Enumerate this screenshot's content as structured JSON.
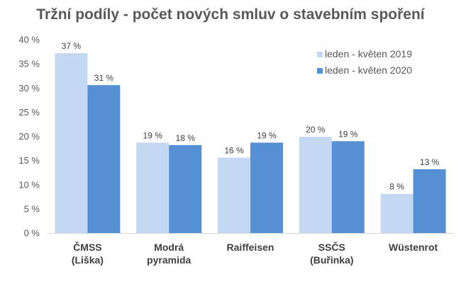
{
  "chart_data": {
    "type": "bar",
    "title": "Tržní podíly - počet nových smluv o stavebním spoření",
    "categories": [
      [
        "ČMSS",
        "(Liška)"
      ],
      [
        "Modrá",
        "pyramida"
      ],
      [
        "Raiffeisen"
      ],
      [
        "SSČS",
        "(Buřinka)"
      ],
      [
        "Wüstenrot"
      ]
    ],
    "series": [
      {
        "name": "leden - květen 2019",
        "color": "#c5d8f1",
        "values": [
          37.2,
          18.7,
          15.6,
          19.9,
          8.1
        ],
        "labels": [
          "37 %",
          "19 %",
          "16 %",
          "20 %",
          "8 %"
        ]
      },
      {
        "name": "leden - květen 2020",
        "color": "#5590d5",
        "values": [
          30.6,
          18.2,
          18.7,
          19.0,
          13.2
        ],
        "labels": [
          "31 %",
          "18 %",
          "19 %",
          "19 %",
          "13 %"
        ]
      }
    ],
    "y_ticks": [
      "0 %",
      "5 %",
      "10 %",
      "15 %",
      "20 %",
      "25 %",
      "30 %",
      "35 %",
      "40 %"
    ],
    "ylim": [
      0,
      40
    ],
    "grid": false,
    "legend_position": "top-right"
  }
}
